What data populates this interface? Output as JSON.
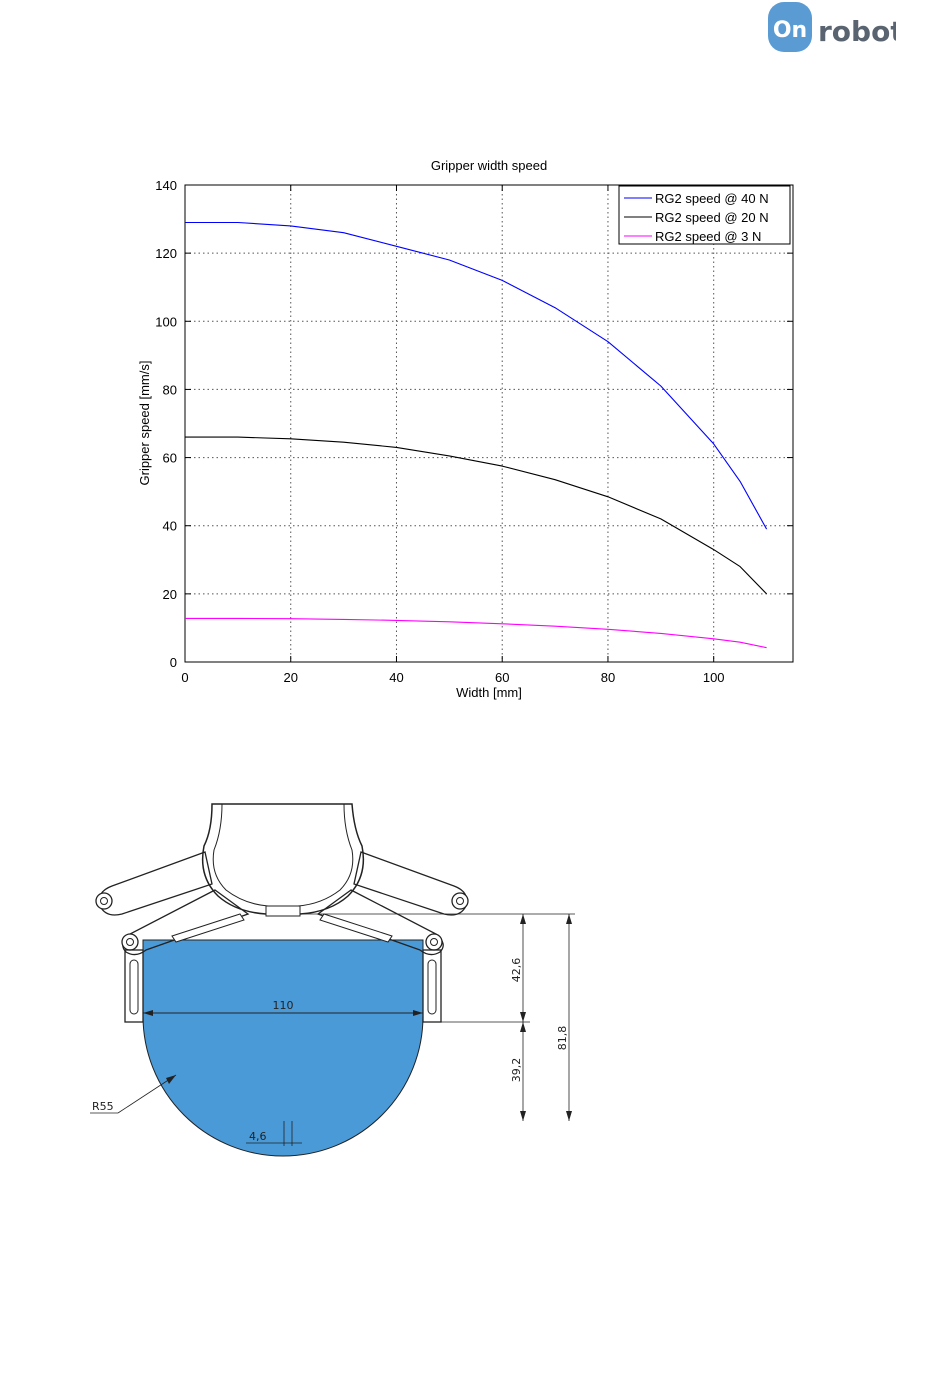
{
  "logo": {
    "text": "robot",
    "badge_letter": "On",
    "badge_color": "#5a9bd4",
    "text_color": "#5a6470"
  },
  "chart_data": {
    "type": "line",
    "title": "Gripper width speed",
    "xlabel": "Width [mm]",
    "ylabel": "Gripper speed [mm/s]",
    "xlim": [
      0,
      115
    ],
    "ylim": [
      0,
      140
    ],
    "xticks": [
      0,
      20,
      40,
      60,
      80,
      100
    ],
    "yticks": [
      0,
      20,
      40,
      60,
      80,
      100,
      120,
      140
    ],
    "grid": true,
    "legend_position": "top-right",
    "x": [
      0,
      10,
      20,
      30,
      40,
      50,
      60,
      70,
      80,
      90,
      100,
      105,
      110
    ],
    "series": [
      {
        "name": "RG2 speed @ 40 N",
        "color": "#0000ff",
        "values": [
          129,
          129,
          128,
          126,
          122,
          118,
          112,
          104,
          94,
          81,
          64,
          53,
          39
        ]
      },
      {
        "name": "RG2 speed @ 20 N",
        "color": "#000000",
        "values": [
          66,
          66,
          65.5,
          64.5,
          63,
          60.5,
          57.5,
          53.5,
          48.5,
          42,
          33,
          28,
          20
        ]
      },
      {
        "name": "RG2 speed @ 3 N",
        "color": "#ff00ff",
        "values": [
          12.8,
          12.8,
          12.7,
          12.5,
          12.2,
          11.8,
          11.2,
          10.5,
          9.6,
          8.4,
          6.8,
          5.8,
          4.2
        ]
      }
    ]
  },
  "drawing": {
    "fill_color": "#4a9ad8",
    "dimensions": {
      "width": "110",
      "upper_height": "42,6",
      "lower_height": "39,2",
      "total_height": "81,8",
      "radius": "R55",
      "offset": "4,6"
    }
  }
}
